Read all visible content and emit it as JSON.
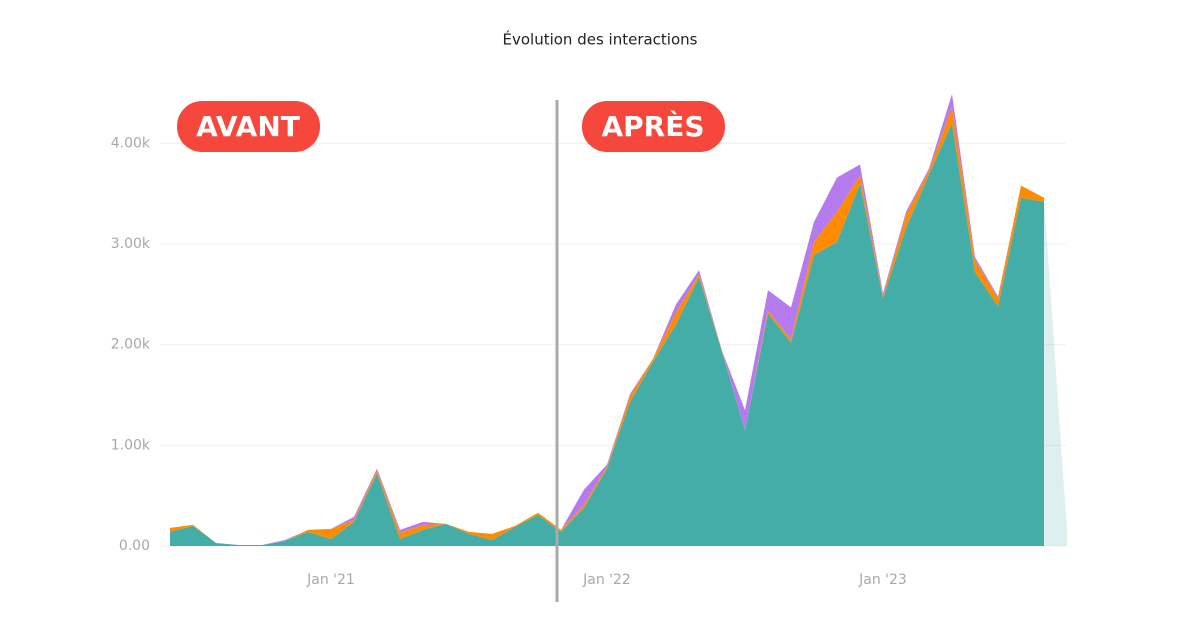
{
  "chart_data": {
    "type": "stacked-area",
    "title": "Évolution des interactions",
    "annotations": [
      "AVANT",
      "APRÈS"
    ],
    "categories": [
      null,
      null,
      null,
      null,
      null,
      null,
      null,
      "Jan '21",
      null,
      null,
      null,
      null,
      null,
      null,
      null,
      null,
      null,
      null,
      null,
      "Jan '22",
      null,
      null,
      null,
      null,
      null,
      null,
      null,
      null,
      null,
      null,
      null,
      "Jan '23",
      null,
      null,
      null,
      null,
      null,
      null,
      null,
      null
    ],
    "series": [
      {
        "name": "Teal",
        "color": "#45ada8",
        "values": [
          140,
          200,
          30,
          10,
          10,
          50,
          140,
          70,
          240,
          720,
          70,
          160,
          220,
          120,
          60,
          190,
          310,
          140,
          380,
          770,
          1430,
          1830,
          2200,
          2670,
          1930,
          1150,
          2310,
          2020,
          2890,
          3020,
          3600,
          2460,
          3160,
          3690,
          4200,
          2720,
          2380,
          3460,
          3420,
          150
        ]
      },
      {
        "name": "Orange",
        "color": "#ff8c00",
        "values": [
          40,
          10,
          0,
          0,
          0,
          0,
          20,
          100,
          20,
          30,
          60,
          50,
          0,
          20,
          60,
          10,
          20,
          20,
          30,
          20,
          60,
          30,
          120,
          30,
          10,
          0,
          30,
          30,
          130,
          300,
          80,
          20,
          130,
          40,
          160,
          120,
          80,
          120,
          40,
          0
        ]
      },
      {
        "name": "Purple",
        "color": "#b57bee",
        "values": [
          0,
          0,
          0,
          0,
          0,
          10,
          0,
          0,
          30,
          20,
          30,
          30,
          0,
          0,
          0,
          0,
          0,
          0,
          150,
          20,
          20,
          0,
          80,
          40,
          0,
          200,
          200,
          320,
          200,
          340,
          110,
          30,
          30,
          20,
          130,
          30,
          20,
          0,
          0,
          0
        ]
      }
    ],
    "ylim": [
      0,
      4500
    ],
    "yticks": [
      {
        "value": 0,
        "label": "0.00"
      },
      {
        "value": 1000,
        "label": "1.00k"
      },
      {
        "value": 2000,
        "label": "2.00k"
      },
      {
        "value": 3000,
        "label": "3.00k"
      },
      {
        "value": 4000,
        "label": "4.00k"
      }
    ],
    "grid": true
  }
}
